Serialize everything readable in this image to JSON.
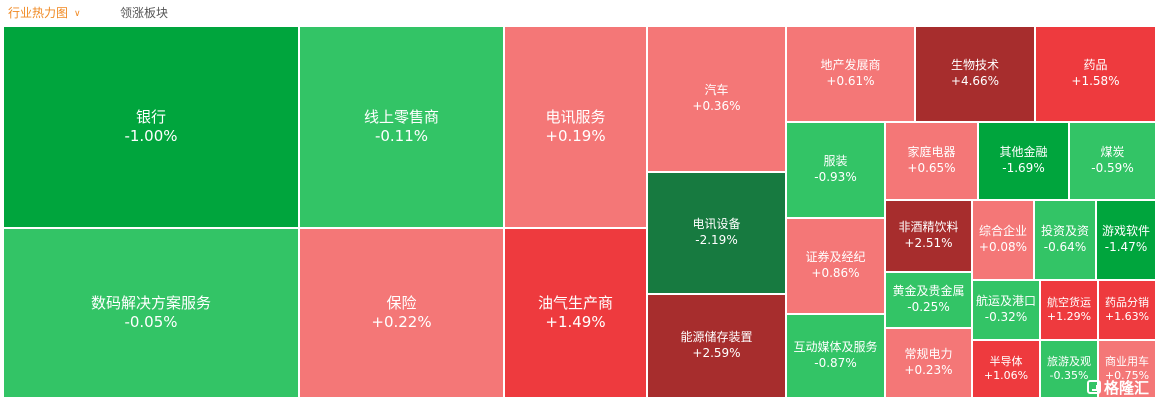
{
  "tabs": [
    {
      "label": "行业热力图",
      "active": true,
      "icon": "chevron-down-icon"
    },
    {
      "label": "领涨板块",
      "active": false
    }
  ],
  "watermark": {
    "text": "格隆汇",
    "icon": "gelonghui-logo-icon"
  },
  "colors": {
    "up_light": "#f47777",
    "up_mid": "#ee3a3e",
    "up_dark": "#a72d2d",
    "down_light": "#33c466",
    "down_mid": "#00a53d",
    "down_dark": "#177a40",
    "text": "#ffffff"
  },
  "sectors": [
    {
      "name": "银行",
      "change": "-1.00%"
    },
    {
      "name": "数码解决方案服务",
      "change": "-0.05%"
    },
    {
      "name": "线上零售商",
      "change": "-0.11%"
    },
    {
      "name": "保险",
      "change": "+0.22%"
    },
    {
      "name": "电讯服务",
      "change": "+0.19%"
    },
    {
      "name": "油气生产商",
      "change": "+1.49%"
    },
    {
      "name": "汽车",
      "change": "+0.36%"
    },
    {
      "name": "电讯设备",
      "change": "-2.19%"
    },
    {
      "name": "能源储存装置",
      "change": "+2.59%"
    },
    {
      "name": "地产发展商",
      "change": "+0.61%"
    },
    {
      "name": "生物技术",
      "change": "+4.66%"
    },
    {
      "name": "药品",
      "change": "+1.58%"
    },
    {
      "name": "服装",
      "change": "-0.93%"
    },
    {
      "name": "家庭电器",
      "change": "+0.65%"
    },
    {
      "name": "其他金融",
      "change": "-1.69%"
    },
    {
      "name": "煤炭",
      "change": "-0.59%"
    },
    {
      "name": "证券及经纪",
      "change": "+0.86%"
    },
    {
      "name": "非酒精饮料",
      "change": "+2.51%"
    },
    {
      "name": "综合企业",
      "change": "+0.08%"
    },
    {
      "name": "投资及资",
      "change": "-0.64%"
    },
    {
      "name": "游戏软件",
      "change": "-1.47%"
    },
    {
      "name": "黄金及贵金属",
      "change": "-0.25%"
    },
    {
      "name": "航运及港口",
      "change": "-0.32%"
    },
    {
      "name": "航空货运",
      "change": "+1.29%"
    },
    {
      "name": "药品分销",
      "change": "+1.63%"
    },
    {
      "name": "互动媒体及服务",
      "change": "-0.87%"
    },
    {
      "name": "常规电力",
      "change": "+0.23%"
    },
    {
      "name": "半导体",
      "change": "+1.06%"
    },
    {
      "name": "旅游及观",
      "change": "-0.35%"
    },
    {
      "name": "商业用车",
      "change": "+0.75%"
    }
  ]
}
